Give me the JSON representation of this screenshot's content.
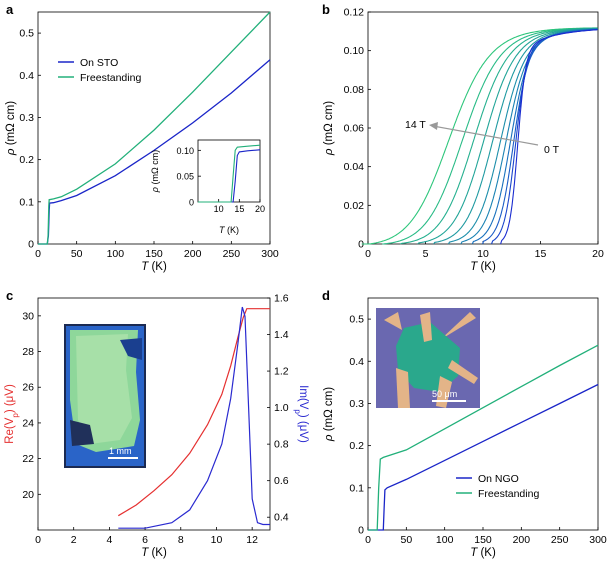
{
  "colors": {
    "on_substrate": "#1a25c8",
    "freestanding": "#22b07a",
    "freestanding_b": "#2ec67c",
    "re": "#e53030",
    "im": "#2a2ad0",
    "arrow": "#999999"
  },
  "panels": {
    "a": "a",
    "b": "b",
    "c": "c",
    "d": "d"
  },
  "chart_data": [
    {
      "panel": "a",
      "type": "line",
      "xlabel": "T (K)",
      "ylabel": "ρ (mΩ cm)",
      "xlim": [
        0,
        300
      ],
      "ylim": [
        0,
        0.55
      ],
      "xticks": [
        "0",
        "50",
        "100",
        "150",
        "200",
        "250",
        "300"
      ],
      "yticks": [
        "0",
        "0.1",
        "0.2",
        "0.3",
        "0.4",
        "0.5"
      ],
      "legend_position": "upper-left",
      "series": [
        {
          "name": "On STO",
          "color": "on_substrate",
          "x": [
            0,
            12,
            13.5,
            14.5,
            15,
            20,
            30,
            50,
            100,
            150,
            200,
            250,
            300
          ],
          "y": [
            0,
            0,
            0.02,
            0.08,
            0.097,
            0.098,
            0.103,
            0.115,
            0.162,
            0.222,
            0.287,
            0.358,
            0.437
          ]
        },
        {
          "name": "Freestanding",
          "color": "freestanding",
          "x": [
            0,
            12,
            13,
            14,
            14.5,
            20,
            30,
            50,
            100,
            150,
            200,
            250,
            300
          ],
          "y": [
            0,
            0,
            0.02,
            0.09,
            0.105,
            0.107,
            0.112,
            0.13,
            0.19,
            0.27,
            0.36,
            0.455,
            0.55
          ]
        }
      ],
      "inset": {
        "xlabel": "T (K)",
        "ylabel": "ρ (mΩ cm)",
        "xlim": [
          5,
          20
        ],
        "ylim": [
          0,
          0.12
        ],
        "xticks": [
          "10",
          "15",
          "20"
        ],
        "yticks": [
          "0",
          "0.05",
          "0.10"
        ],
        "series": [
          {
            "color": "on_substrate",
            "x": [
              5,
              13.5,
              14,
              14.5,
              15,
              17,
              20
            ],
            "y": [
              0,
              0,
              0.04,
              0.09,
              0.097,
              0.099,
              0.101
            ]
          },
          {
            "color": "freestanding",
            "x": [
              5,
              13,
              13.5,
              14,
              14.5,
              17,
              20
            ],
            "y": [
              0,
              0,
              0.05,
              0.1,
              0.106,
              0.108,
              0.11
            ]
          }
        ]
      }
    },
    {
      "panel": "b",
      "type": "line",
      "xlabel": "T (K)",
      "ylabel": "ρ (mΩ cm)",
      "xlim": [
        0,
        20
      ],
      "ylim": [
        0,
        0.12
      ],
      "xticks": [
        "0",
        "5",
        "10",
        "15",
        "20"
      ],
      "yticks": [
        "0",
        "0.02",
        "0.04",
        "0.06",
        "0.08",
        "0.10",
        "0.12"
      ],
      "annotations": [
        "14 T",
        "0 T"
      ],
      "field_curves_tc": [
        6.8,
        8.0,
        9.0,
        9.9,
        10.7,
        11.4,
        11.9,
        12.3,
        12.6,
        12.8,
        13.0
      ],
      "field_curves_colors": [
        "#2ec67c",
        "#29bb86",
        "#25b08f",
        "#22a598",
        "#1f9aa1",
        "#1c8eaa",
        "#1a82b3",
        "#1870bd",
        "#1a5cc6",
        "#1a45cc",
        "#1a2cd0"
      ]
    },
    {
      "panel": "c",
      "type": "line",
      "xlabel": "T (K)",
      "ylabel_left": "Re(V",
      "ylabel_left_sub": "p",
      "ylabel_left_unit": ") (μV)",
      "ylabel_right": "Im(V",
      "ylabel_right_sub": "p",
      "ylabel_right_unit": ") (μV)",
      "xlim": [
        0,
        13
      ],
      "ylim_left": [
        18,
        31
      ],
      "ylim_right": [
        0.33,
        1.6
      ],
      "xticks": [
        "0",
        "2",
        "4",
        "6",
        "8",
        "10",
        "12"
      ],
      "yticks_left": [
        "20",
        "22",
        "24",
        "26",
        "28",
        "30"
      ],
      "yticks_right": [
        "0.4",
        "0.6",
        "0.8",
        "1.0",
        "1.2",
        "1.4",
        "1.6"
      ],
      "scale_bar": "1 mm",
      "series": [
        {
          "name": "Re",
          "axis": "left",
          "color": "re",
          "x": [
            4.5,
            5.5,
            6.5,
            7.5,
            8.5,
            9.5,
            10.3,
            10.8,
            11.2,
            11.5,
            11.7,
            12,
            12.5,
            13
          ],
          "y": [
            18.8,
            19.4,
            20.2,
            21.1,
            22.3,
            23.9,
            25.6,
            27.2,
            28.8,
            29.9,
            30.4,
            30.4,
            30.4,
            30.4
          ]
        },
        {
          "name": "Im",
          "axis": "right",
          "color": "im",
          "x": [
            4.5,
            6,
            7.5,
            8.5,
            9.5,
            10.3,
            10.8,
            11.2,
            11.45,
            11.6,
            11.8,
            12,
            12.3,
            12.6,
            13
          ],
          "y": [
            0.34,
            0.34,
            0.37,
            0.44,
            0.6,
            0.8,
            1.05,
            1.35,
            1.55,
            1.5,
            1.0,
            0.5,
            0.37,
            0.36,
            0.36
          ]
        }
      ]
    },
    {
      "panel": "d",
      "type": "line",
      "xlabel": "T (K)",
      "ylabel": "ρ (mΩ cm)",
      "xlim": [
        0,
        300
      ],
      "ylim": [
        0,
        0.55
      ],
      "xticks": [
        "0",
        "50",
        "100",
        "150",
        "200",
        "250",
        "300"
      ],
      "yticks": [
        "0",
        "0.1",
        "0.2",
        "0.3",
        "0.4",
        "0.5"
      ],
      "legend_position": "lower-right",
      "scale_bar": "50 μm",
      "series": [
        {
          "name": "On NGO",
          "color": "on_substrate",
          "x": [
            0,
            20,
            21,
            22,
            25,
            50,
            100,
            150,
            200,
            250,
            300
          ],
          "y": [
            0,
            0,
            0.05,
            0.095,
            0.1,
            0.12,
            0.165,
            0.21,
            0.255,
            0.3,
            0.345
          ]
        },
        {
          "name": "Freestanding",
          "color": "freestanding",
          "x": [
            0,
            12,
            14,
            16,
            20,
            50,
            100,
            150,
            200,
            250,
            300
          ],
          "y": [
            0,
            0,
            0.1,
            0.168,
            0.172,
            0.19,
            0.24,
            0.29,
            0.34,
            0.39,
            0.438
          ]
        }
      ]
    }
  ]
}
